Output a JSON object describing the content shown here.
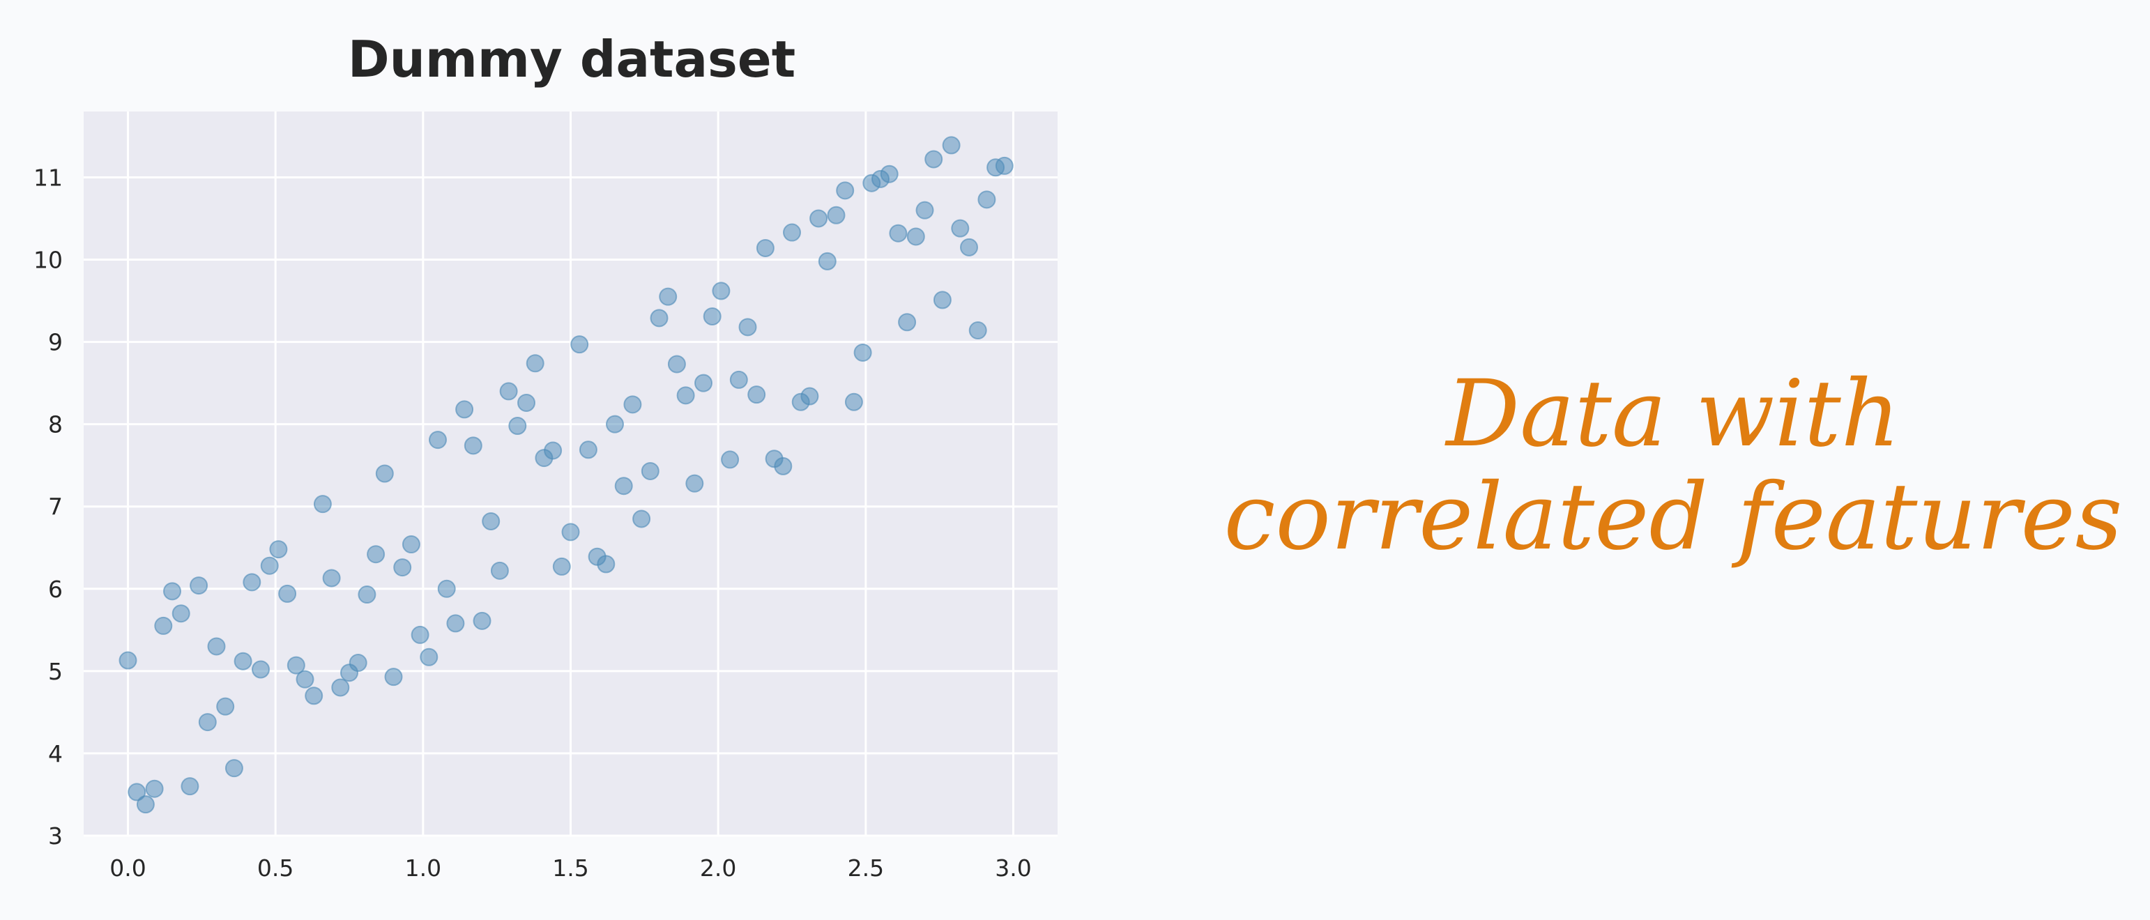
{
  "caption": {
    "line1": "Data with",
    "line2": "correlated features"
  },
  "colors": {
    "background": "#f9fafc",
    "plot_background": "#eaeaf2",
    "grid": "#ffffff",
    "points": "#4c8ab8",
    "caption": "#e07d10"
  },
  "chart_data": {
    "type": "scatter",
    "title": "Dummy dataset",
    "xlabel": "",
    "ylabel": "",
    "xlim": [
      -0.15,
      3.15
    ],
    "ylim": [
      3,
      11.8
    ],
    "xticks": [
      0.0,
      0.5,
      1.0,
      1.5,
      2.0,
      2.5,
      3.0
    ],
    "xtick_labels": [
      "0.0",
      "0.5",
      "1.0",
      "1.5",
      "2.0",
      "2.5",
      "3.0"
    ],
    "yticks": [
      3,
      4,
      5,
      6,
      7,
      8,
      9,
      10,
      11
    ],
    "ytick_labels": [
      "3",
      "4",
      "5",
      "6",
      "7",
      "8",
      "9",
      "10",
      "11"
    ],
    "grid": true,
    "points": [
      [
        0.0,
        5.13
      ],
      [
        0.03,
        3.53
      ],
      [
        0.06,
        3.38
      ],
      [
        0.09,
        3.57
      ],
      [
        0.12,
        5.55
      ],
      [
        0.15,
        5.97
      ],
      [
        0.18,
        5.7
      ],
      [
        0.21,
        3.6
      ],
      [
        0.24,
        6.04
      ],
      [
        0.27,
        4.38
      ],
      [
        0.3,
        5.3
      ],
      [
        0.33,
        4.57
      ],
      [
        0.36,
        3.82
      ],
      [
        0.39,
        5.12
      ],
      [
        0.42,
        6.08
      ],
      [
        0.45,
        5.02
      ],
      [
        0.48,
        6.28
      ],
      [
        0.51,
        6.48
      ],
      [
        0.54,
        5.94
      ],
      [
        0.57,
        5.07
      ],
      [
        0.6,
        4.9
      ],
      [
        0.63,
        4.7
      ],
      [
        0.66,
        7.03
      ],
      [
        0.69,
        6.13
      ],
      [
        0.72,
        4.8
      ],
      [
        0.75,
        4.98
      ],
      [
        0.78,
        5.1
      ],
      [
        0.81,
        5.93
      ],
      [
        0.84,
        6.42
      ],
      [
        0.87,
        7.4
      ],
      [
        0.9,
        4.93
      ],
      [
        0.93,
        6.26
      ],
      [
        0.96,
        6.54
      ],
      [
        0.99,
        5.44
      ],
      [
        1.02,
        5.17
      ],
      [
        1.05,
        7.81
      ],
      [
        1.08,
        6.0
      ],
      [
        1.11,
        5.58
      ],
      [
        1.14,
        8.18
      ],
      [
        1.17,
        7.74
      ],
      [
        1.2,
        5.61
      ],
      [
        1.23,
        6.82
      ],
      [
        1.26,
        6.22
      ],
      [
        1.29,
        8.4
      ],
      [
        1.32,
        7.98
      ],
      [
        1.35,
        8.26
      ],
      [
        1.38,
        8.74
      ],
      [
        1.41,
        7.59
      ],
      [
        1.44,
        7.68
      ],
      [
        1.47,
        6.27
      ],
      [
        1.5,
        6.69
      ],
      [
        1.53,
        8.97
      ],
      [
        1.56,
        7.69
      ],
      [
        1.59,
        6.39
      ],
      [
        1.62,
        6.3
      ],
      [
        1.65,
        8.0
      ],
      [
        1.68,
        7.25
      ],
      [
        1.71,
        8.24
      ],
      [
        1.74,
        6.85
      ],
      [
        1.77,
        7.43
      ],
      [
        1.8,
        9.29
      ],
      [
        1.83,
        9.55
      ],
      [
        1.86,
        8.73
      ],
      [
        1.89,
        8.35
      ],
      [
        1.92,
        7.28
      ],
      [
        1.95,
        8.5
      ],
      [
        1.98,
        9.31
      ],
      [
        2.01,
        9.62
      ],
      [
        2.04,
        7.57
      ],
      [
        2.07,
        8.54
      ],
      [
        2.1,
        9.18
      ],
      [
        2.13,
        8.36
      ],
      [
        2.16,
        10.14
      ],
      [
        2.19,
        7.58
      ],
      [
        2.22,
        7.49
      ],
      [
        2.25,
        10.33
      ],
      [
        2.28,
        8.27
      ],
      [
        2.31,
        8.34
      ],
      [
        2.34,
        10.5
      ],
      [
        2.37,
        9.98
      ],
      [
        2.4,
        10.54
      ],
      [
        2.43,
        10.84
      ],
      [
        2.46,
        8.27
      ],
      [
        2.49,
        8.87
      ],
      [
        2.52,
        10.93
      ],
      [
        2.55,
        10.98
      ],
      [
        2.58,
        11.04
      ],
      [
        2.61,
        10.32
      ],
      [
        2.64,
        9.24
      ],
      [
        2.67,
        10.28
      ],
      [
        2.7,
        10.6
      ],
      [
        2.73,
        11.22
      ],
      [
        2.76,
        9.51
      ],
      [
        2.79,
        11.39
      ],
      [
        2.82,
        10.38
      ],
      [
        2.85,
        10.15
      ],
      [
        2.88,
        9.14
      ],
      [
        2.91,
        10.73
      ],
      [
        2.94,
        11.12
      ],
      [
        2.97,
        11.14
      ]
    ]
  }
}
